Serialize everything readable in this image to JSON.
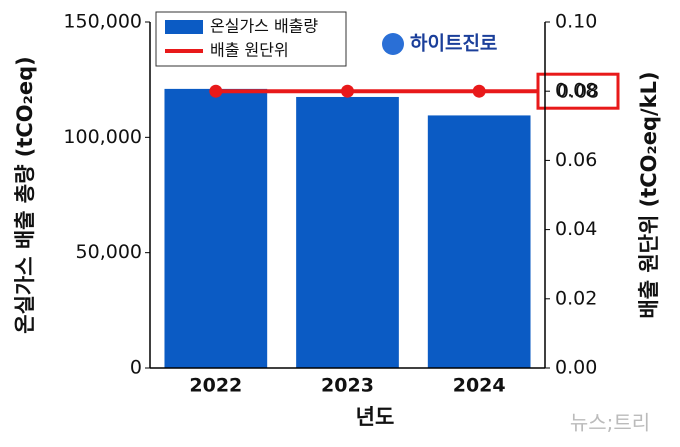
{
  "chart_data": {
    "type": "bar-line",
    "categories": [
      "2022",
      "2023",
      "2024"
    ],
    "series": [
      {
        "name": "온실가스 배출량",
        "type": "bar",
        "color": "#0b5bc4",
        "values": [
          121000,
          117500,
          109500
        ]
      },
      {
        "name": "배출 원단위",
        "type": "line",
        "color": "#e8191a",
        "axis": "y2",
        "values": [
          0.08,
          0.08,
          0.08
        ]
      }
    ],
    "xlabel": "년도",
    "ylabel": "온실가스 배출 총량 (tCO₂eq)",
    "y2label": "배출 원단위 (tCO₂eq/kL)",
    "ylim": [
      0,
      150000
    ],
    "yticks": [
      0,
      {
        "value": 50000,
        "label": "50,000"
      },
      {
        "value": 100000,
        "label": "100,000"
      },
      {
        "value": 150000,
        "label": "150,000"
      }
    ],
    "y2lim": [
      0,
      0.1
    ],
    "y2ticks": [
      {
        "value": 0,
        "label": "0.00"
      },
      0.02,
      0.04,
      0.06,
      0.08,
      {
        "value": 0.1,
        "label": "0.10"
      }
    ],
    "annotation": "0.08",
    "logo": "하이트진로",
    "watermark": "뉴스;트리",
    "legend": "upper left"
  }
}
